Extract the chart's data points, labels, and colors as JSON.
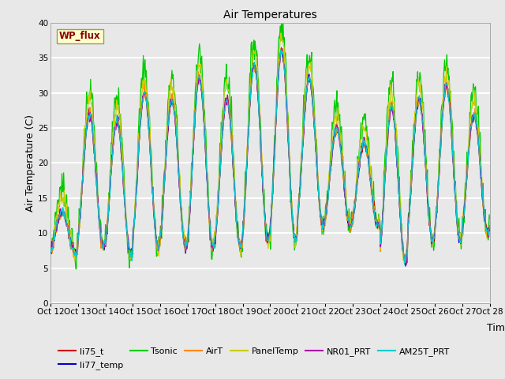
{
  "title": "Air Temperatures",
  "xlabel": "Time",
  "ylabel": "Air Temperature (C)",
  "ylim": [
    0,
    40
  ],
  "yticks": [
    0,
    5,
    10,
    15,
    20,
    25,
    30,
    35,
    40
  ],
  "n_days": 16,
  "pts_per_day": 48,
  "day_peaks": [
    13,
    27,
    26,
    30,
    29,
    32,
    29,
    34,
    36,
    32,
    25,
    23,
    28,
    29,
    31,
    27
  ],
  "day_troughs": [
    7,
    8,
    7,
    8,
    8,
    8,
    8,
    9,
    9,
    11,
    11,
    11,
    6,
    9,
    9,
    10
  ],
  "tsonic_extra": 3.5,
  "panel_extra": 2.0,
  "series_colors": {
    "li75_t": "#cc0000",
    "li77_temp": "#0000cc",
    "Tsonic": "#00cc00",
    "AirT": "#ff8800",
    "PanelTemp": "#cccc00",
    "NR01_PRT": "#aa00aa",
    "AM25T_PRT": "#00cccc"
  },
  "fig_facecolor": "#e8e8e8",
  "plot_bg_color": "#e8e8e8",
  "wp_flux_box_color": "#ffffcc",
  "wp_flux_text_color": "#880000",
  "grid_color": "#ffffff",
  "title_fontsize": 10,
  "axis_label_fontsize": 9,
  "tick_fontsize": 7.5,
  "legend_fontsize": 8
}
